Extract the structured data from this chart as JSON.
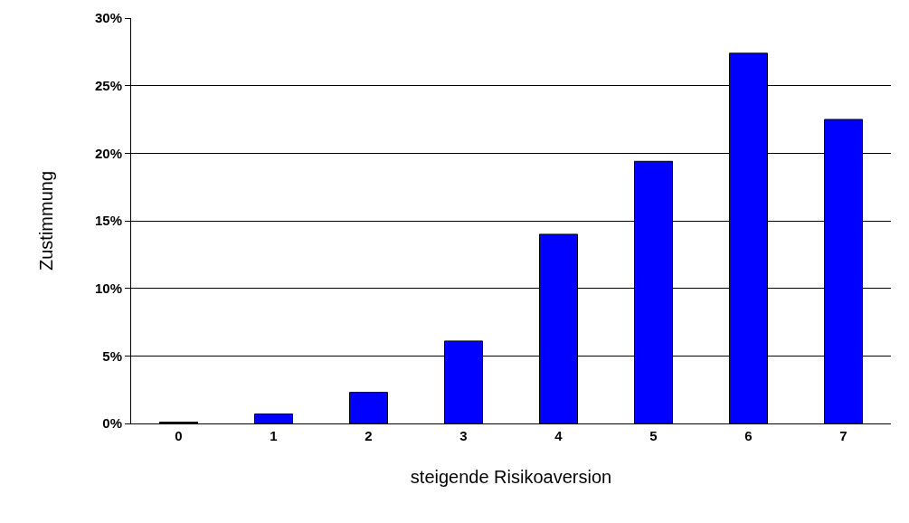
{
  "chart_data": {
    "type": "bar",
    "xlabel": "steigende Risikoaversion",
    "ylabel": "Zustimmung",
    "categories": [
      "0",
      "1",
      "2",
      "3",
      "4",
      "5",
      "6",
      "7"
    ],
    "values": [
      0.1,
      0.7,
      2.3,
      6.1,
      14.0,
      19.4,
      27.4,
      22.5
    ],
    "color": "#0000ff",
    "ylim": [
      0,
      30
    ],
    "yticks": [
      {
        "value": 0,
        "label": "0%"
      },
      {
        "value": 5,
        "label": "5%"
      },
      {
        "value": 10,
        "label": "10%"
      },
      {
        "value": 15,
        "label": "15%"
      },
      {
        "value": 20,
        "label": "20%"
      },
      {
        "value": 25,
        "label": "25%"
      },
      {
        "value": 30,
        "label": "30%"
      }
    ],
    "grid": "y",
    "legend": false
  }
}
